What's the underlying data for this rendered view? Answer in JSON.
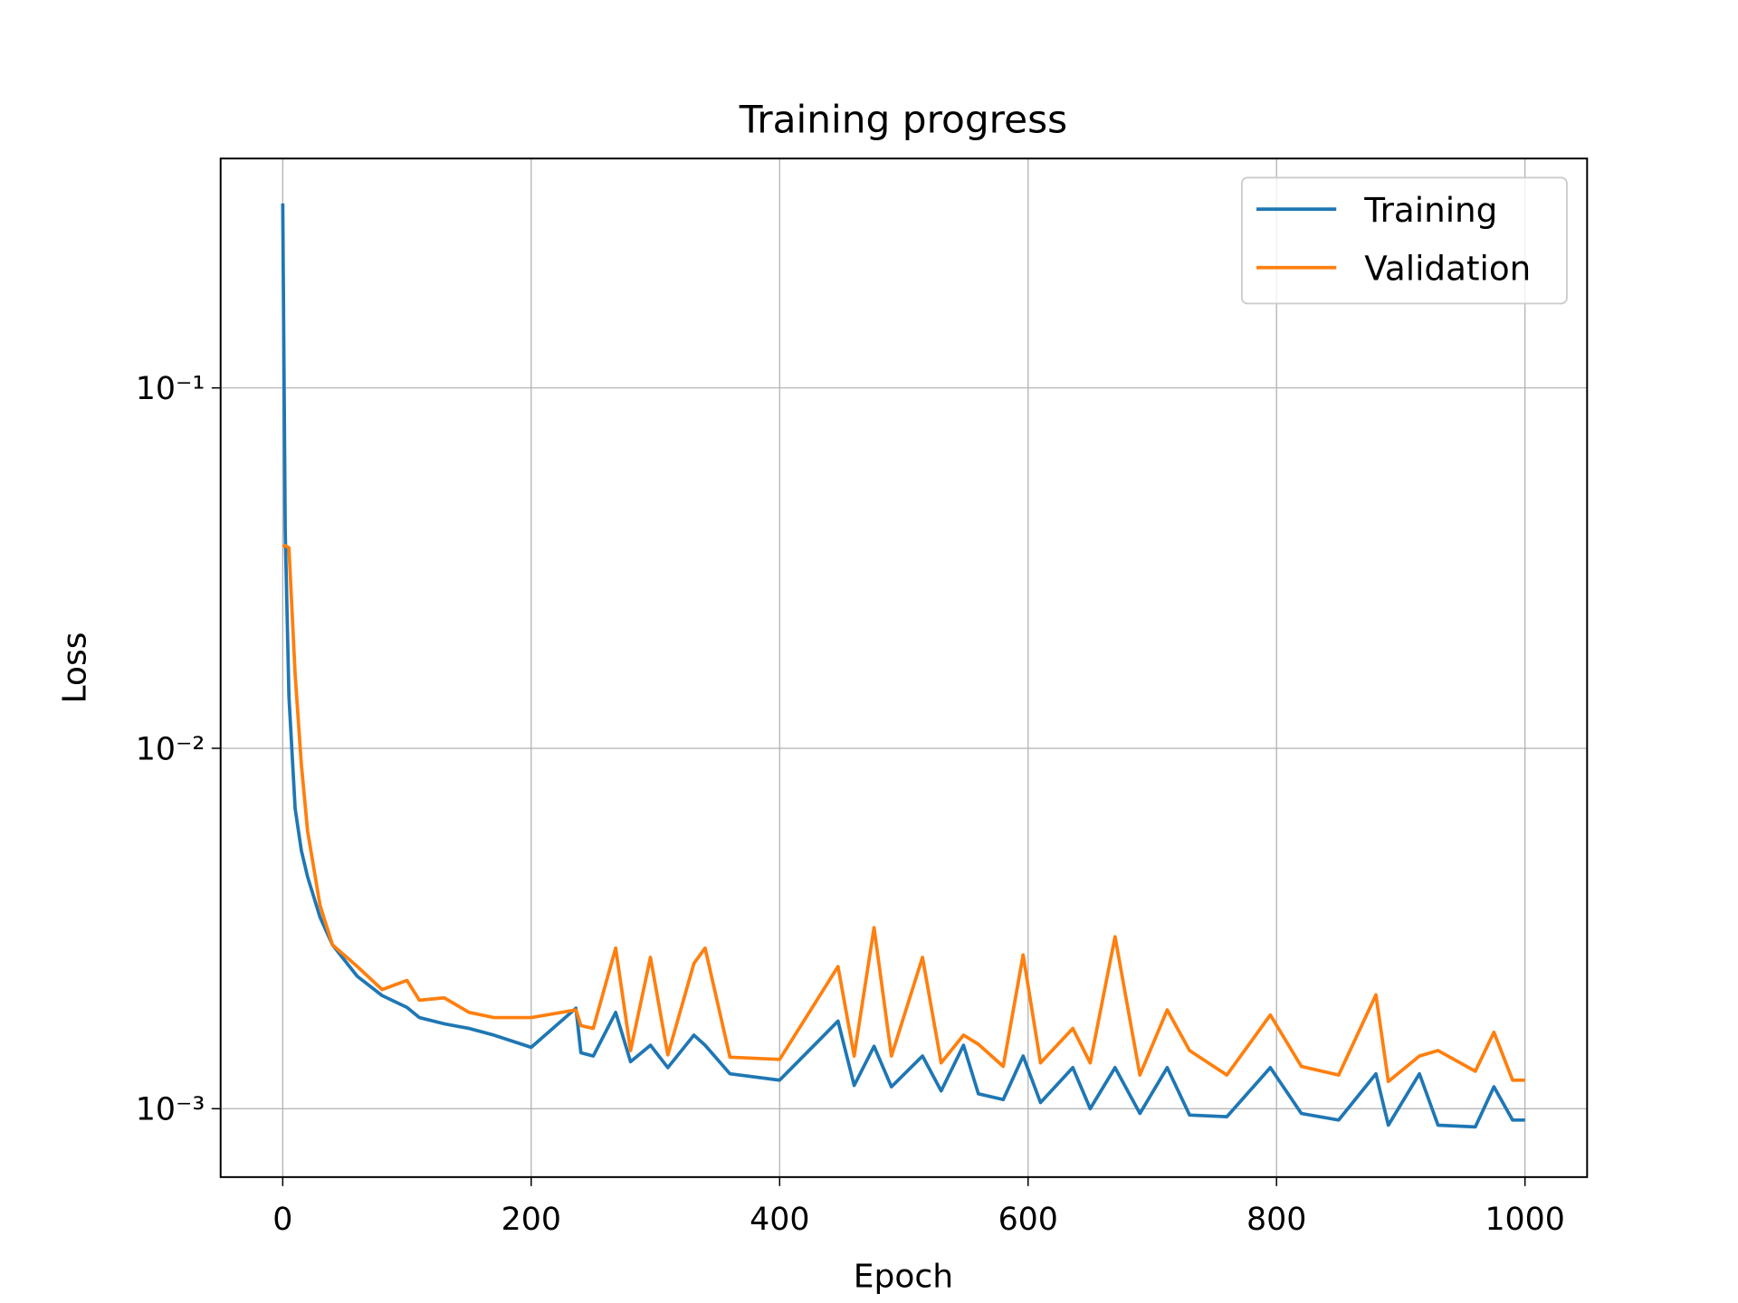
{
  "chart_data": {
    "type": "line",
    "title": "Training progress",
    "x_label": "Epoch",
    "y_label": "Loss",
    "x": [
      0,
      2,
      5,
      10,
      15,
      20,
      30,
      40,
      60,
      80,
      100,
      110,
      130,
      150,
      170,
      200,
      236,
      240,
      250,
      268,
      280,
      296,
      310,
      331,
      340,
      360,
      400,
      447,
      460,
      476,
      490,
      515,
      530,
      548,
      560,
      580,
      596,
      610,
      636,
      650,
      670,
      690,
      712,
      730,
      760,
      795,
      820,
      850,
      880,
      890,
      915,
      930,
      960,
      975,
      990,
      1000
    ],
    "series": [
      {
        "name": "Training",
        "color": "#1f77b4",
        "values": [
          0.325,
          0.04,
          0.0139,
          0.0068,
          0.0052,
          0.0044,
          0.0034,
          0.00285,
          0.00233,
          0.00206,
          0.00191,
          0.00179,
          0.00172,
          0.00167,
          0.0016,
          0.00148,
          0.0019,
          0.00143,
          0.0014,
          0.00185,
          0.00135,
          0.0015,
          0.0013,
          0.0016,
          0.0015,
          0.00125,
          0.0012,
          0.00175,
          0.00116,
          0.00149,
          0.00115,
          0.0014,
          0.00112,
          0.0015,
          0.0011,
          0.00106,
          0.0014,
          0.00104,
          0.0013,
          0.001,
          0.0013,
          0.00097,
          0.0013,
          0.00096,
          0.00095,
          0.0013,
          0.00097,
          0.00093,
          0.00125,
          0.0009,
          0.00125,
          0.0009,
          0.00089,
          0.00115,
          0.00093,
          0.00093
        ]
      },
      {
        "name": "Validation",
        "color": "#ff7f0e",
        "values": [
          0.0363,
          0.0365,
          0.036,
          0.016,
          0.009,
          0.0059,
          0.00367,
          0.00285,
          0.00248,
          0.00214,
          0.00227,
          0.002,
          0.00203,
          0.00185,
          0.00179,
          0.00179,
          0.00188,
          0.0017,
          0.00167,
          0.00279,
          0.00145,
          0.00263,
          0.00141,
          0.00253,
          0.00279,
          0.00139,
          0.00137,
          0.00248,
          0.0014,
          0.00318,
          0.0014,
          0.00263,
          0.00134,
          0.0016,
          0.00151,
          0.00131,
          0.00267,
          0.00134,
          0.00167,
          0.00134,
          0.003,
          0.00124,
          0.00188,
          0.00145,
          0.00124,
          0.00182,
          0.00131,
          0.00124,
          0.00207,
          0.00119,
          0.0014,
          0.00145,
          0.00127,
          0.00163,
          0.0012,
          0.0012
        ]
      }
    ],
    "xlim": [
      -50,
      1050
    ],
    "xticks": [
      0,
      200,
      400,
      600,
      800,
      1000
    ],
    "ylim": [
      0.000646,
      0.433
    ],
    "yscale": "log",
    "yticks": [
      {
        "value": 0.001,
        "label": "10⁻³"
      },
      {
        "value": 0.01,
        "label": "10⁻²"
      },
      {
        "value": 0.1,
        "label": "10⁻¹"
      }
    ],
    "grid": true,
    "legend": "upper right"
  }
}
